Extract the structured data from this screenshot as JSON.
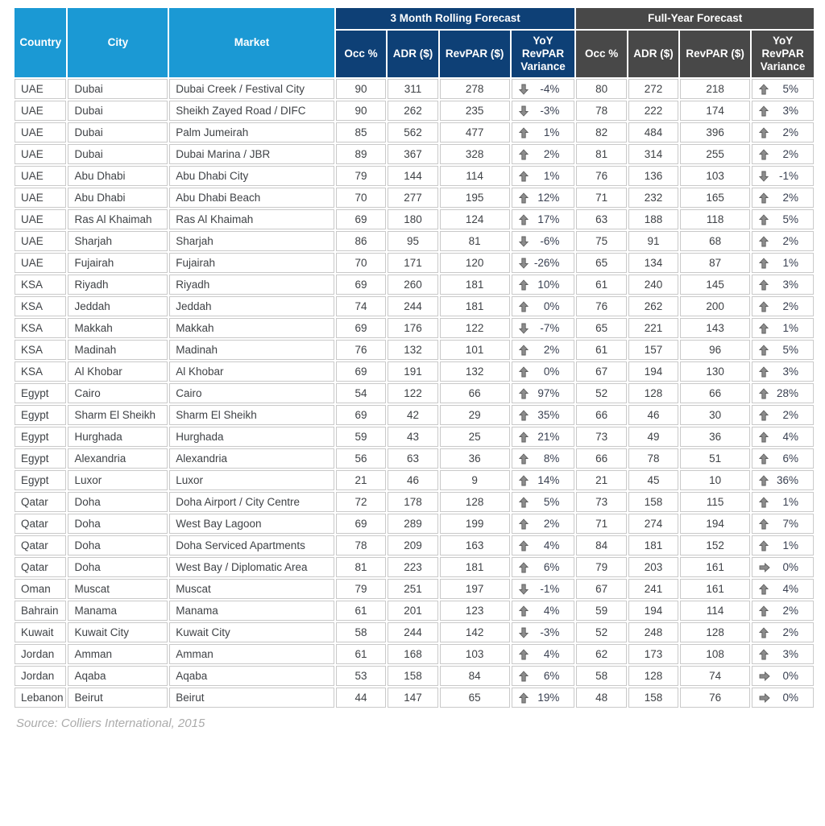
{
  "header": {
    "country": "Country",
    "city": "City",
    "market": "Market",
    "group_3month": "3 Month Rolling Forecast",
    "group_fullyear": "Full-Year Forecast",
    "sub": [
      "Occ %",
      "ADR ($)",
      "RevPAR ($)",
      "YoY RevPAR Variance"
    ]
  },
  "source": "Source: Colliers International, 2015",
  "colors": {
    "header_light_blue": "#1b99d4",
    "header_navy": "#0e4076",
    "header_dark_gray": "#484848",
    "cell_border": "#c9c9c9",
    "arrow_gray": "#8c8c8c"
  },
  "rows": [
    {
      "country": "UAE",
      "city": "Dubai",
      "market": "Dubai Creek / Festival City",
      "m3": {
        "occ": 90,
        "adr": 311,
        "revpar": 278,
        "dir": "down",
        "var": "-4%"
      },
      "fy": {
        "occ": 80,
        "adr": 272,
        "revpar": 218,
        "dir": "up",
        "var": "5%"
      }
    },
    {
      "country": "UAE",
      "city": "Dubai",
      "market": "Sheikh Zayed Road / DIFC",
      "m3": {
        "occ": 90,
        "adr": 262,
        "revpar": 235,
        "dir": "down",
        "var": "-3%"
      },
      "fy": {
        "occ": 78,
        "adr": 222,
        "revpar": 174,
        "dir": "up",
        "var": "3%"
      }
    },
    {
      "country": "UAE",
      "city": "Dubai",
      "market": "Palm Jumeirah",
      "m3": {
        "occ": 85,
        "adr": 562,
        "revpar": 477,
        "dir": "up",
        "var": "1%"
      },
      "fy": {
        "occ": 82,
        "adr": 484,
        "revpar": 396,
        "dir": "up",
        "var": "2%"
      }
    },
    {
      "country": "UAE",
      "city": "Dubai",
      "market": "Dubai Marina / JBR",
      "m3": {
        "occ": 89,
        "adr": 367,
        "revpar": 328,
        "dir": "up",
        "var": "2%"
      },
      "fy": {
        "occ": 81,
        "adr": 314,
        "revpar": 255,
        "dir": "up",
        "var": "2%"
      }
    },
    {
      "country": "UAE",
      "city": "Abu Dhabi",
      "market": "Abu Dhabi City",
      "m3": {
        "occ": 79,
        "adr": 144,
        "revpar": 114,
        "dir": "up",
        "var": "1%"
      },
      "fy": {
        "occ": 76,
        "adr": 136,
        "revpar": 103,
        "dir": "down",
        "var": "-1%"
      }
    },
    {
      "country": "UAE",
      "city": "Abu Dhabi",
      "market": "Abu Dhabi Beach",
      "m3": {
        "occ": 70,
        "adr": 277,
        "revpar": 195,
        "dir": "up",
        "var": "12%"
      },
      "fy": {
        "occ": 71,
        "adr": 232,
        "revpar": 165,
        "dir": "up",
        "var": "2%"
      }
    },
    {
      "country": "UAE",
      "city": "Ras Al Khaimah",
      "market": "Ras Al Khaimah",
      "m3": {
        "occ": 69,
        "adr": 180,
        "revpar": 124,
        "dir": "up",
        "var": "17%"
      },
      "fy": {
        "occ": 63,
        "adr": 188,
        "revpar": 118,
        "dir": "up",
        "var": "5%"
      }
    },
    {
      "country": "UAE",
      "city": "Sharjah",
      "market": "Sharjah",
      "m3": {
        "occ": 86,
        "adr": 95,
        "revpar": 81,
        "dir": "down",
        "var": "-6%"
      },
      "fy": {
        "occ": 75,
        "adr": 91,
        "revpar": 68,
        "dir": "up",
        "var": "2%"
      }
    },
    {
      "country": "UAE",
      "city": "Fujairah",
      "market": "Fujairah",
      "m3": {
        "occ": 70,
        "adr": 171,
        "revpar": 120,
        "dir": "down",
        "var": "-26%"
      },
      "fy": {
        "occ": 65,
        "adr": 134,
        "revpar": 87,
        "dir": "up",
        "var": "1%"
      }
    },
    {
      "country": "KSA",
      "city": "Riyadh",
      "market": "Riyadh",
      "m3": {
        "occ": 69,
        "adr": 260,
        "revpar": 181,
        "dir": "up",
        "var": "10%"
      },
      "fy": {
        "occ": 61,
        "adr": 240,
        "revpar": 145,
        "dir": "up",
        "var": "3%"
      }
    },
    {
      "country": "KSA",
      "city": "Jeddah",
      "market": "Jeddah",
      "m3": {
        "occ": 74,
        "adr": 244,
        "revpar": 181,
        "dir": "up",
        "var": "0%"
      },
      "fy": {
        "occ": 76,
        "adr": 262,
        "revpar": 200,
        "dir": "up",
        "var": "2%"
      }
    },
    {
      "country": "KSA",
      "city": "Makkah",
      "market": "Makkah",
      "m3": {
        "occ": 69,
        "adr": 176,
        "revpar": 122,
        "dir": "down",
        "var": "-7%"
      },
      "fy": {
        "occ": 65,
        "adr": 221,
        "revpar": 143,
        "dir": "up",
        "var": "1%"
      }
    },
    {
      "country": "KSA",
      "city": "Madinah",
      "market": "Madinah",
      "m3": {
        "occ": 76,
        "adr": 132,
        "revpar": 101,
        "dir": "up",
        "var": "2%"
      },
      "fy": {
        "occ": 61,
        "adr": 157,
        "revpar": 96,
        "dir": "up",
        "var": "5%"
      }
    },
    {
      "country": "KSA",
      "city": "Al Khobar",
      "market": "Al Khobar",
      "m3": {
        "occ": 69,
        "adr": 191,
        "revpar": 132,
        "dir": "up",
        "var": "0%"
      },
      "fy": {
        "occ": 67,
        "adr": 194,
        "revpar": 130,
        "dir": "up",
        "var": "3%"
      }
    },
    {
      "country": "Egypt",
      "city": "Cairo",
      "market": "Cairo",
      "m3": {
        "occ": 54,
        "adr": 122,
        "revpar": 66,
        "dir": "up",
        "var": "97%"
      },
      "fy": {
        "occ": 52,
        "adr": 128,
        "revpar": 66,
        "dir": "up",
        "var": "28%"
      }
    },
    {
      "country": "Egypt",
      "city": "Sharm El Sheikh",
      "market": "Sharm El Sheikh",
      "m3": {
        "occ": 69,
        "adr": 42,
        "revpar": 29,
        "dir": "up",
        "var": "35%"
      },
      "fy": {
        "occ": 66,
        "adr": 46,
        "revpar": 30,
        "dir": "up",
        "var": "2%"
      }
    },
    {
      "country": "Egypt",
      "city": "Hurghada",
      "market": "Hurghada",
      "m3": {
        "occ": 59,
        "adr": 43,
        "revpar": 25,
        "dir": "up",
        "var": "21%"
      },
      "fy": {
        "occ": 73,
        "adr": 49,
        "revpar": 36,
        "dir": "up",
        "var": "4%"
      }
    },
    {
      "country": "Egypt",
      "city": "Alexandria",
      "market": "Alexandria",
      "m3": {
        "occ": 56,
        "adr": 63,
        "revpar": 36,
        "dir": "up",
        "var": "8%"
      },
      "fy": {
        "occ": 66,
        "adr": 78,
        "revpar": 51,
        "dir": "up",
        "var": "6%"
      }
    },
    {
      "country": "Egypt",
      "city": "Luxor",
      "market": "Luxor",
      "m3": {
        "occ": 21,
        "adr": 46,
        "revpar": 9,
        "dir": "up",
        "var": "14%"
      },
      "fy": {
        "occ": 21,
        "adr": 45,
        "revpar": 10,
        "dir": "up",
        "var": "36%"
      }
    },
    {
      "country": "Qatar",
      "city": "Doha",
      "market": "Doha Airport / City Centre",
      "m3": {
        "occ": 72,
        "adr": 178,
        "revpar": 128,
        "dir": "up",
        "var": "5%"
      },
      "fy": {
        "occ": 73,
        "adr": 158,
        "revpar": 115,
        "dir": "up",
        "var": "1%"
      }
    },
    {
      "country": "Qatar",
      "city": "Doha",
      "market": "West Bay Lagoon",
      "m3": {
        "occ": 69,
        "adr": 289,
        "revpar": 199,
        "dir": "up",
        "var": "2%"
      },
      "fy": {
        "occ": 71,
        "adr": 274,
        "revpar": 194,
        "dir": "up",
        "var": "7%"
      }
    },
    {
      "country": "Qatar",
      "city": "Doha",
      "market": "Doha Serviced Apartments",
      "m3": {
        "occ": 78,
        "adr": 209,
        "revpar": 163,
        "dir": "up",
        "var": "4%"
      },
      "fy": {
        "occ": 84,
        "adr": 181,
        "revpar": 152,
        "dir": "up",
        "var": "1%"
      }
    },
    {
      "country": "Qatar",
      "city": "Doha",
      "market": "West Bay / Diplomatic Area",
      "m3": {
        "occ": 81,
        "adr": 223,
        "revpar": 181,
        "dir": "up",
        "var": "6%"
      },
      "fy": {
        "occ": 79,
        "adr": 203,
        "revpar": 161,
        "dir": "right",
        "var": "0%"
      }
    },
    {
      "country": "Oman",
      "city": "Muscat",
      "market": "Muscat",
      "m3": {
        "occ": 79,
        "adr": 251,
        "revpar": 197,
        "dir": "down",
        "var": "-1%"
      },
      "fy": {
        "occ": 67,
        "adr": 241,
        "revpar": 161,
        "dir": "up",
        "var": "4%"
      }
    },
    {
      "country": "Bahrain",
      "city": "Manama",
      "market": "Manama",
      "m3": {
        "occ": 61,
        "adr": 201,
        "revpar": 123,
        "dir": "up",
        "var": "4%"
      },
      "fy": {
        "occ": 59,
        "adr": 194,
        "revpar": 114,
        "dir": "up",
        "var": "2%"
      }
    },
    {
      "country": "Kuwait",
      "city": "Kuwait City",
      "market": "Kuwait City",
      "m3": {
        "occ": 58,
        "adr": 244,
        "revpar": 142,
        "dir": "down",
        "var": "-3%"
      },
      "fy": {
        "occ": 52,
        "adr": 248,
        "revpar": 128,
        "dir": "up",
        "var": "2%"
      }
    },
    {
      "country": "Jordan",
      "city": "Amman",
      "market": "Amman",
      "m3": {
        "occ": 61,
        "adr": 168,
        "revpar": 103,
        "dir": "up",
        "var": "4%"
      },
      "fy": {
        "occ": 62,
        "adr": 173,
        "revpar": 108,
        "dir": "up",
        "var": "3%"
      }
    },
    {
      "country": "Jordan",
      "city": "Aqaba",
      "market": "Aqaba",
      "m3": {
        "occ": 53,
        "adr": 158,
        "revpar": 84,
        "dir": "up",
        "var": "6%"
      },
      "fy": {
        "occ": 58,
        "adr": 128,
        "revpar": 74,
        "dir": "right",
        "var": "0%"
      }
    },
    {
      "country": "Lebanon",
      "city": "Beirut",
      "market": "Beirut",
      "m3": {
        "occ": 44,
        "adr": 147,
        "revpar": 65,
        "dir": "up",
        "var": "19%"
      },
      "fy": {
        "occ": 48,
        "adr": 158,
        "revpar": 76,
        "dir": "right",
        "var": "0%"
      }
    }
  ]
}
